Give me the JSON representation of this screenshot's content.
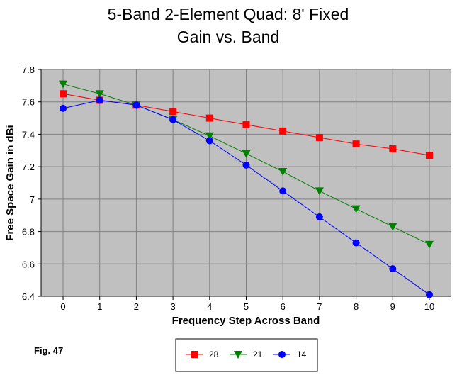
{
  "chart_data": {
    "type": "line",
    "title": "5-Band 2-Element Quad: 8' Fixed",
    "subtitle": "Gain vs. Band",
    "xlabel": "Frequency Step Across Band",
    "ylabel": "Free Space Gain in dBi",
    "figure_label": "Fig. 47",
    "x": [
      0,
      1,
      2,
      3,
      4,
      5,
      6,
      7,
      8,
      9,
      10
    ],
    "x_tick_labels": [
      "0",
      "1",
      "2",
      "3",
      "4",
      "5",
      "6",
      "7",
      "8",
      "9",
      "10"
    ],
    "y_tick_values": [
      6.4,
      6.6,
      6.8,
      7.0,
      7.2,
      7.4,
      7.6,
      7.8
    ],
    "y_tick_labels": [
      "6.4",
      "6.6",
      "6.8",
      "7",
      "7.2",
      "7.4",
      "7.6",
      "7.8"
    ],
    "xlim": [
      -0.6,
      10.6
    ],
    "ylim": [
      6.4,
      7.8
    ],
    "grid": true,
    "legend_position": "bottom-center",
    "series": [
      {
        "name": "28",
        "color": "#ff0000",
        "marker": "square",
        "values": [
          7.65,
          7.61,
          7.58,
          7.54,
          7.5,
          7.46,
          7.42,
          7.38,
          7.34,
          7.31,
          7.27
        ]
      },
      {
        "name": "21",
        "color": "#008000",
        "marker": "triangle-down",
        "values": [
          7.71,
          7.65,
          7.58,
          7.49,
          7.39,
          7.28,
          7.17,
          7.05,
          6.94,
          6.83,
          6.72
        ]
      },
      {
        "name": "14",
        "color": "#0000ff",
        "marker": "circle",
        "values": [
          7.56,
          7.61,
          7.58,
          7.49,
          7.36,
          7.21,
          7.05,
          6.89,
          6.73,
          6.57,
          6.41
        ]
      }
    ]
  }
}
